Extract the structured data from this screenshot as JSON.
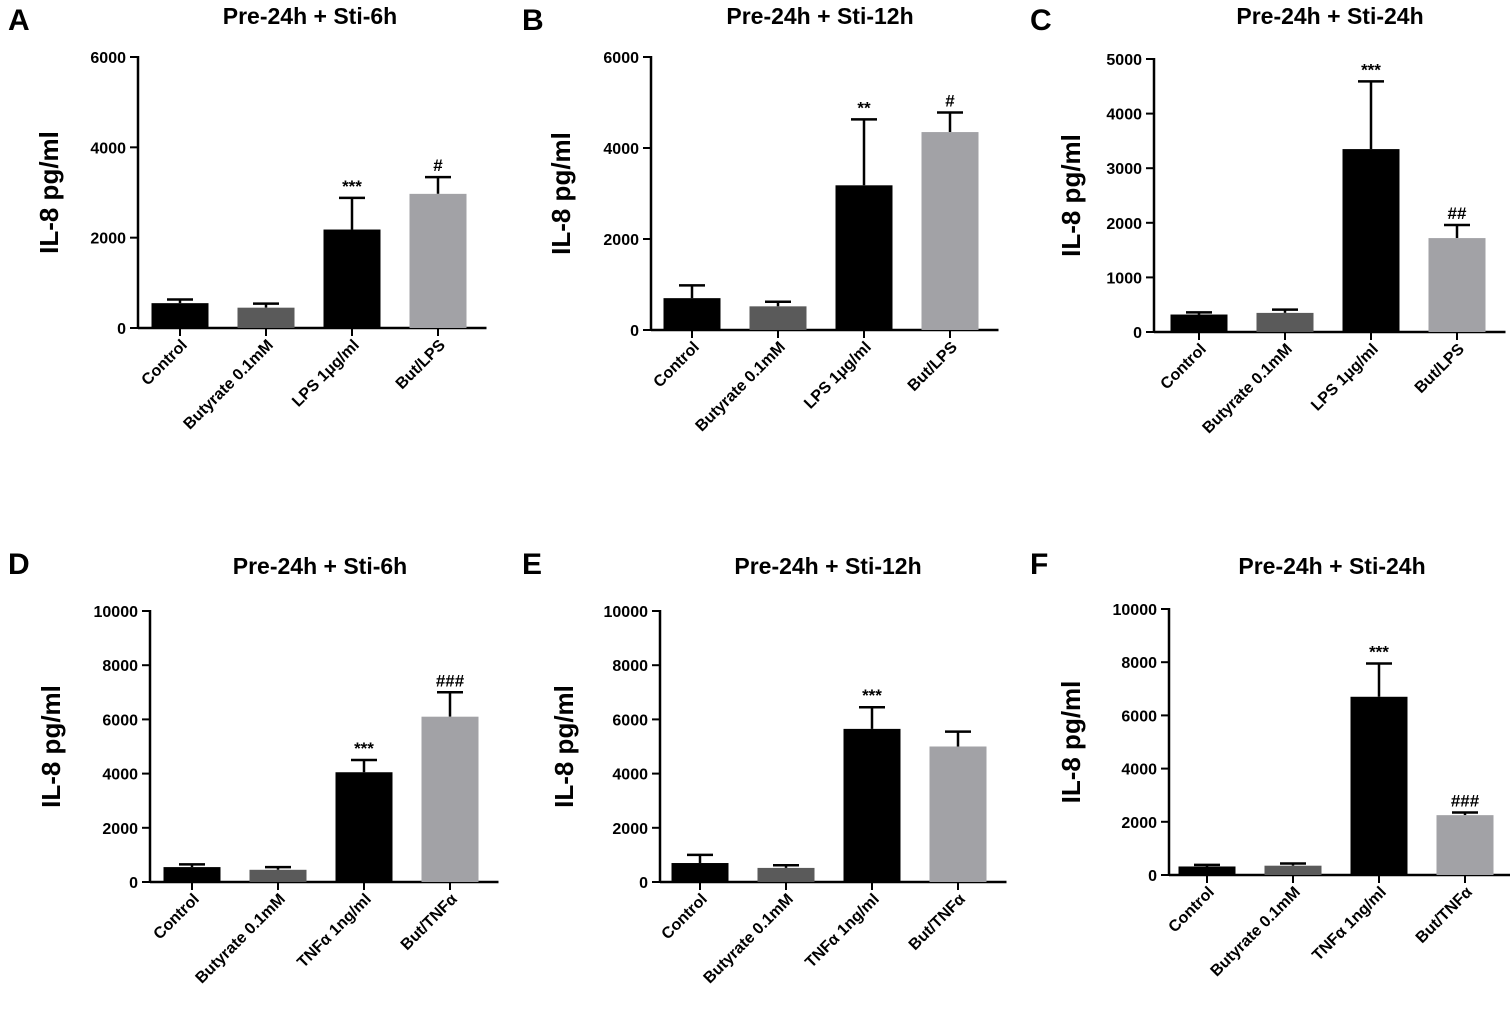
{
  "colors": {
    "Control": "#000000",
    "Butyrate": "#5a5a5a",
    "Stimulus": "#000000",
    "Combination": "#a2a2a6"
  },
  "chart_data": [
    {
      "panel": "A",
      "type": "bar",
      "title": "Pre-24h + Sti-6h",
      "ylabel": "IL-8 pg/ml",
      "ylim": [
        0,
        6000
      ],
      "yticks": [
        "0",
        "2000",
        "4000",
        "6000"
      ],
      "categories": [
        "Control",
        "Butyrate 0.1mM",
        "LPS 1μg/ml",
        "But/LPS"
      ],
      "values": [
        550,
        450,
        2180,
        2970
      ],
      "errors": [
        80,
        90,
        700,
        370
      ],
      "annotations": [
        "",
        "",
        "***",
        "#"
      ]
    },
    {
      "panel": "B",
      "type": "bar",
      "title": "Pre-24h + Sti-12h",
      "ylabel": "IL-8 pg/ml",
      "ylim": [
        0,
        6000
      ],
      "yticks": [
        "0",
        "2000",
        "4000",
        "6000"
      ],
      "categories": [
        "Control",
        "Butyrate 0.1mM",
        "LPS 1μg/ml",
        "But/LPS"
      ],
      "values": [
        700,
        520,
        3180,
        4350
      ],
      "errors": [
        280,
        100,
        1450,
        430
      ],
      "annotations": [
        "",
        "",
        "**",
        "#"
      ]
    },
    {
      "panel": "C",
      "type": "bar",
      "title": "Pre-24h + Sti-24h",
      "ylabel": "IL-8 pg/ml",
      "ylim": [
        0,
        5000
      ],
      "yticks": [
        "0",
        "1000",
        "2000",
        "3000",
        "4000",
        "5000"
      ],
      "categories": [
        "Control",
        "Butyrate 0.1mM",
        "LPS 1μg/ml",
        "But/LPS"
      ],
      "values": [
        320,
        350,
        3350,
        1720
      ],
      "errors": [
        40,
        60,
        1240,
        240
      ],
      "annotations": [
        "",
        "",
        "***",
        "##"
      ]
    },
    {
      "panel": "D",
      "type": "bar",
      "title": "Pre-24h + Sti-6h",
      "ylabel": "IL-8 pg/ml",
      "ylim": [
        0,
        10000
      ],
      "yticks": [
        "0",
        "2000",
        "4000",
        "6000",
        "8000",
        "10000"
      ],
      "categories": [
        "Control",
        "Butyrate 0.1mM",
        "TNFα 1ng/ml",
        "But/TNFα"
      ],
      "values": [
        550,
        450,
        4050,
        6100
      ],
      "errors": [
        100,
        100,
        450,
        900
      ],
      "annotations": [
        "",
        "",
        "***",
        "###"
      ]
    },
    {
      "panel": "E",
      "type": "bar",
      "title": "Pre-24h + Sti-12h",
      "ylabel": "IL-8 pg/ml",
      "ylim": [
        0,
        10000
      ],
      "yticks": [
        "0",
        "2000",
        "4000",
        "6000",
        "8000",
        "10000"
      ],
      "categories": [
        "Control",
        "Butyrate 0.1mM",
        "TNFα 1ng/ml",
        "But/TNFα"
      ],
      "values": [
        700,
        520,
        5650,
        5000
      ],
      "errors": [
        300,
        100,
        800,
        550
      ],
      "annotations": [
        "",
        "",
        "***",
        ""
      ]
    },
    {
      "panel": "F",
      "type": "bar",
      "title": "Pre-24h + Sti-24h",
      "ylabel": "IL-8 pg/ml",
      "ylim": [
        0,
        10000
      ],
      "yticks": [
        "0",
        "2000",
        "4000",
        "6000",
        "8000",
        "10000"
      ],
      "categories": [
        "Control",
        "Butyrate 0.1mM",
        "TNFα 1ng/ml",
        "But/TNFα"
      ],
      "values": [
        320,
        350,
        6700,
        2250
      ],
      "errors": [
        60,
        80,
        1250,
        100
      ],
      "annotations": [
        "",
        "",
        "***",
        "###"
      ]
    }
  ]
}
